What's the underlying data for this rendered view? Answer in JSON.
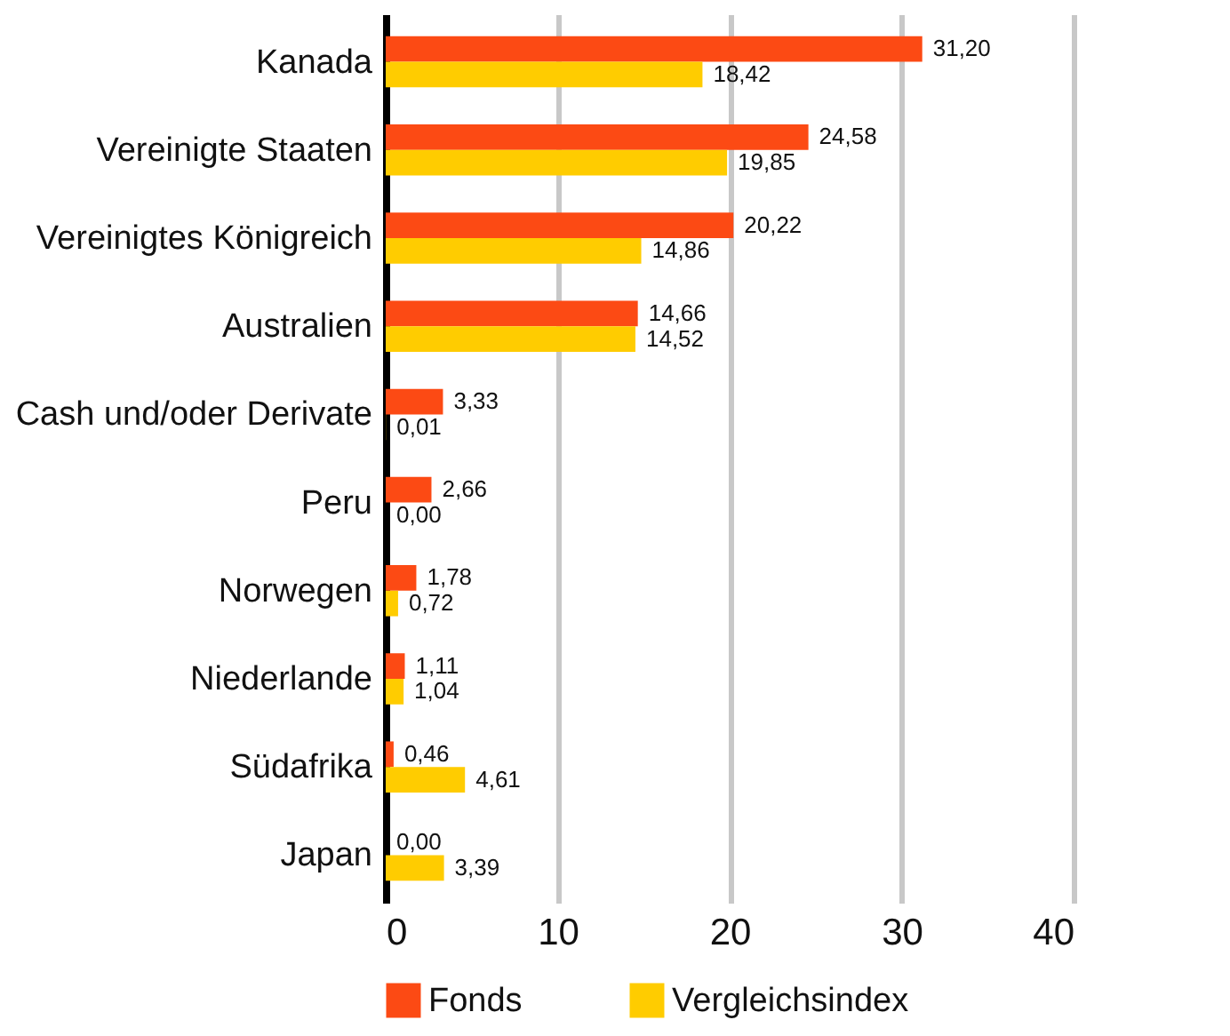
{
  "chart_data": {
    "type": "bar",
    "orientation": "horizontal",
    "categories": [
      "Kanada",
      "Vereinigte Staaten",
      "Vereinigtes Königreich",
      "Australien",
      "Cash und/oder Derivate",
      "Peru",
      "Norwegen",
      "Niederlande",
      "Südafrika",
      "Japan"
    ],
    "series": [
      {
        "name": "Fonds",
        "color": "#fc4a14",
        "values": [
          31.2,
          24.58,
          20.22,
          14.66,
          3.33,
          2.66,
          1.78,
          1.11,
          0.46,
          0.0
        ],
        "value_labels": [
          "31,20",
          "24,58",
          "20,22",
          "14,66",
          "3,33",
          "2,66",
          "1,78",
          "1,11",
          "0,46",
          "0,00"
        ]
      },
      {
        "name": "Vergleichsindex",
        "color": "#ffcc00",
        "values": [
          18.42,
          19.85,
          14.86,
          14.52,
          0.01,
          0.0,
          0.72,
          1.04,
          4.61,
          3.39
        ],
        "value_labels": [
          "18,42",
          "19,85",
          "14,86",
          "14,52",
          "0,01",
          "0,00",
          "0,72",
          "1,04",
          "4,61",
          "3,39"
        ]
      }
    ],
    "xlim": [
      0,
      40
    ],
    "xticks": [
      0,
      10,
      20,
      30,
      40
    ],
    "grid": "x",
    "legend": "bottom"
  }
}
